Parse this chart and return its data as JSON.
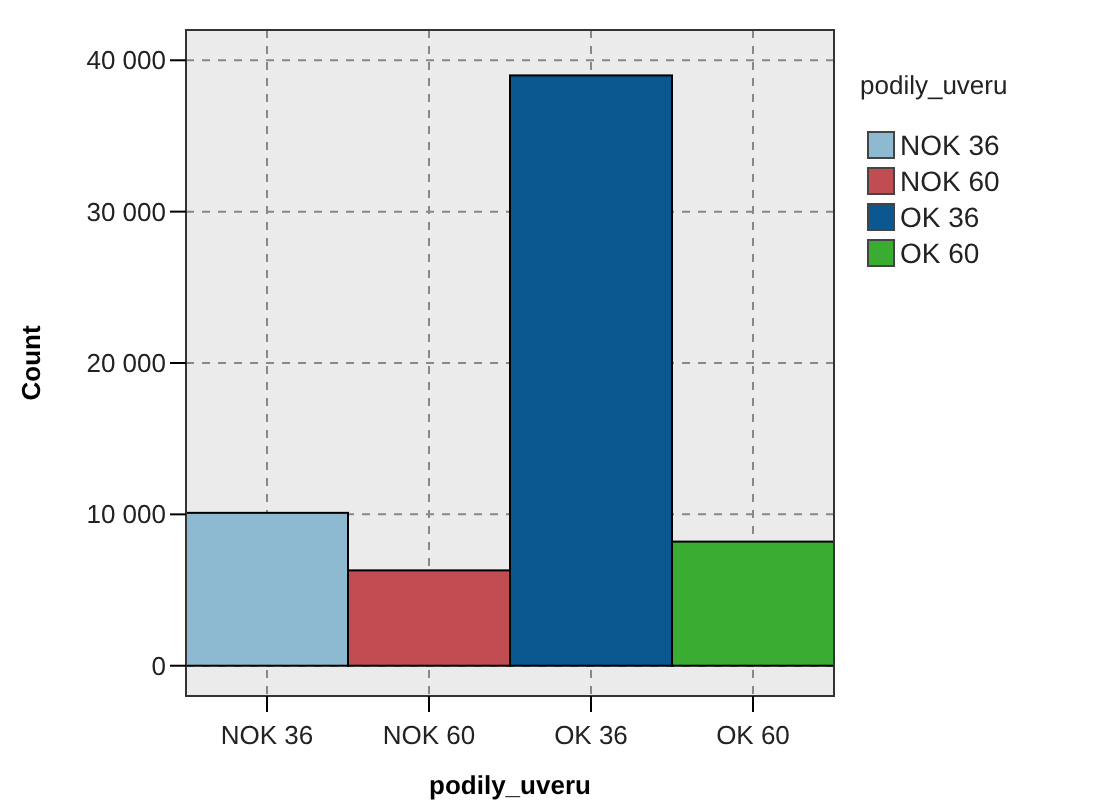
{
  "chart_data": {
    "type": "bar",
    "xlabel": "podily_uveru",
    "ylabel": "Count",
    "legend_title": "podily_uveru",
    "categories": [
      "NOK 36",
      "NOK 60",
      "OK 36",
      "OK 60"
    ],
    "series": [
      {
        "name": "NOK 36",
        "color": "#8db9d1",
        "values": [
          10100,
          null,
          null,
          null
        ]
      },
      {
        "name": "NOK 60",
        "color": "#c14d52",
        "values": [
          null,
          6300,
          null,
          null
        ]
      },
      {
        "name": "OK 36",
        "color": "#0b5890",
        "values": [
          null,
          null,
          39000,
          null
        ]
      },
      {
        "name": "OK 60",
        "color": "#3aac32",
        "values": [
          null,
          null,
          null,
          8200
        ]
      }
    ],
    "ylim": [
      -2000,
      42000
    ],
    "yticks": [
      {
        "value": 0,
        "label": "0"
      },
      {
        "value": 10000,
        "label": "10 000"
      },
      {
        "value": 20000,
        "label": "20 000"
      },
      {
        "value": 30000,
        "label": "30 000"
      },
      {
        "value": 40000,
        "label": "40 000"
      }
    ],
    "grid": true,
    "legend": "right"
  }
}
